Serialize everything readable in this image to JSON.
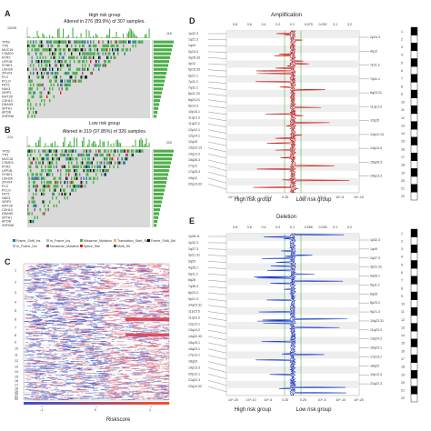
{
  "panels": {
    "A": {
      "letter": "A",
      "group": "High risk group",
      "altered": "Altered in 276 (89.9%) of 307 samples.",
      "ymax": "10249",
      "right_max": "116",
      "genes": [
        "TP53",
        "TTN",
        "MUC16",
        "CSMD3",
        "RYR2",
        "LRP1B",
        "SYNE1",
        "USH2A",
        "ZFHX4",
        "FLG",
        "PCLO",
        "FAT3",
        "NAV3",
        "XIRP2",
        "KMT2D",
        "CDH10",
        "DNAH5",
        "SPTA1",
        "APOB",
        "ZNF536"
      ]
    },
    "B": {
      "letter": "B",
      "group": "Low risk group",
      "altered": "Altered in 319 (97.85%) of 326 samples.",
      "ymax": "214",
      "right_max": "220",
      "genes": [
        "TP53",
        "TTN",
        "MUC16",
        "CSMD3",
        "RYR2",
        "LRP1B",
        "SYNE1",
        "USH2A",
        "ZFHX4",
        "FLG",
        "PCLO",
        "FAT3",
        "NAV3",
        "XIRP2",
        "KMT2D",
        "CDH10",
        "DNAH5",
        "SPTA1",
        "APOB",
        "ZNF536"
      ]
    },
    "legend": [
      "Frame_Shift_Ins",
      "In_Frame_Ins",
      "Missense_Mutation",
      "Translation_Start_Site",
      "Frame_Shift_Del",
      "In_Frame_Del",
      "Nonsense_Mutation",
      "Splice_Site",
      "Multi_Hit"
    ],
    "C": {
      "letter": "C",
      "xlabel": "Riskscore",
      "xticks": [
        "-1",
        "0",
        "1"
      ],
      "chromosomes": [
        "1",
        "2",
        "3",
        "4",
        "5",
        "6",
        "7",
        "8",
        "9",
        "10",
        "11",
        "12",
        "13",
        "14",
        "15",
        "16",
        "17",
        "18",
        "19",
        "20",
        "21",
        "22"
      ]
    },
    "D": {
      "letter": "D",
      "title": "Amplification",
      "top_ticks": [
        "0.8",
        "0.6",
        "0.4",
        "0.2",
        "0.1",
        "0.079",
        "0.032",
        "3.1",
        "3.2"
      ],
      "bottom_ticks": [
        "10^-10",
        "10^-5",
        "10^-2",
        "0.25",
        "0.25",
        "10^-2",
        "10^-5",
        "10^-10"
      ],
      "left_label": "High risk group",
      "right_label": "Low risk group",
      "left_cytobands": [
        "1p32.3",
        "1q21.3",
        "1q44",
        "2p24.3",
        "3q26.33",
        "4p12",
        "5p15.33",
        "6p21.1",
        "7p11.2",
        "7q31.1",
        "8p11.23",
        "8q24.21",
        "9p13.3",
        "10p15.1",
        "11q13.3",
        "11q22.2",
        "12p12.1",
        "12q14.1",
        "12q15",
        "13q12.13",
        "14q13.3",
        "15q26.3",
        "17q12",
        "17q25.3",
        "19q12",
        "20q13.33"
      ],
      "right_cytobands": [
        "2p24.3",
        "4q12",
        "7p11.2",
        "7q31.1",
        "8q24.21",
        "11q13.3",
        "12q15",
        "13q12.13",
        "14q13.3",
        "15q26.3",
        "19q13.3"
      ]
    },
    "E": {
      "letter": "E",
      "title": "Deletion",
      "top_ticks": [
        "0.8",
        "0.6",
        "0.4",
        "0.2",
        "0.1",
        "0.065",
        "0.028",
        "0.1",
        "0.2"
      ],
      "bottom_ticks": [
        "10^-20",
        "10^-10",
        "10^-5",
        "0.25",
        "0.25",
        "10^-5",
        "10^-10",
        "10^-20"
      ],
      "left_label": "High risk group",
      "right_label": "Low risk group",
      "left_cytobands": [
        "1p36.11",
        "1p32.3",
        "2q37.3",
        "3p21.31",
        "3q29",
        "4q35.1",
        "5q11.2",
        "6q26",
        "7q36.3",
        "8p23.2",
        "9p21.3",
        "10q23.31",
        "11p15.5",
        "11q23.3",
        "12p13.1",
        "13q14.2",
        "14q32.33",
        "15q15.1",
        "16q23.1",
        "17p13.1",
        "18q23",
        "19p13.3",
        "20p12.1",
        "21q22.3",
        "22q13.32"
      ],
      "right_cytobands": [
        "1p32.3",
        "1q44",
        "2q37.3",
        "3p21.31",
        "4q35.1",
        "5q11.2",
        "6q26",
        "8p23.2",
        "9p21.3",
        "10q23.31",
        "11q23.3",
        "13q14.2",
        "16q23.1",
        "17p13.1",
        "18q23",
        "19p13.3",
        "21q22.3"
      ]
    }
  },
  "colors": {
    "missense": "#4daf4a",
    "truncating": "#111111",
    "frameshift": "#1f78b4",
    "splice": "#e41a1c",
    "nonsense": "#984ea3",
    "amp": "#cc1111",
    "del": "#1133cc",
    "sig": "#33aa33"
  }
}
